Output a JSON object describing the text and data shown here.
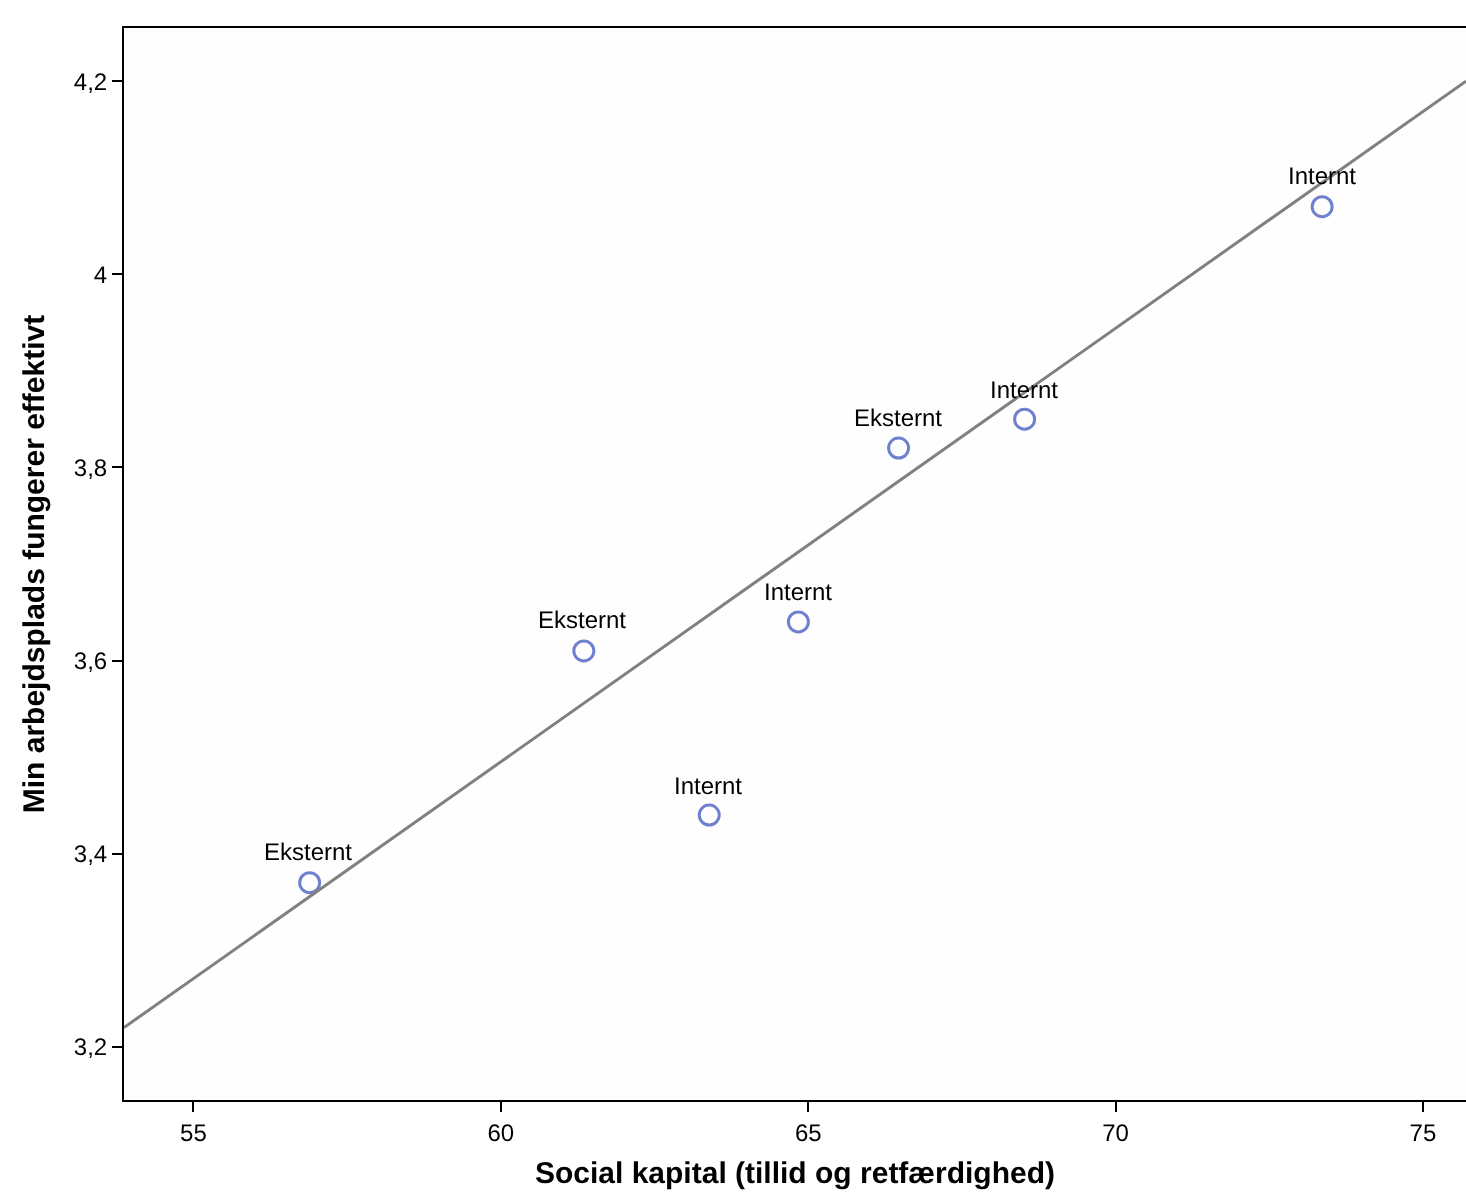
{
  "chart_data": {
    "type": "scatter",
    "xlabel": "Social kapital (tillid og retfærdighed)",
    "ylabel": "Min arbejdsplads fungerer effektivt",
    "x": [
      56.89,
      61.35,
      63.39,
      64.84,
      66.47,
      68.52,
      73.36
    ],
    "series": [
      {
        "type": "scatter",
        "color": "#6f80cc",
        "marker": "circle",
        "values": [
          3.37,
          3.61,
          3.44,
          3.64,
          3.82,
          3.85,
          4.07
        ]
      },
      {
        "type": "line",
        "color": "#808080",
        "x": [
          53.87,
          75.7
        ],
        "values": [
          3.22,
          4.2
        ]
      }
    ],
    "annotations": [
      {
        "text": "Eksternt",
        "x": 56.89,
        "y": 3.37
      },
      {
        "text": "Eksternt",
        "x": 61.35,
        "y": 3.61
      },
      {
        "text": "Internt",
        "x": 63.39,
        "y": 3.44
      },
      {
        "text": "Internt",
        "x": 64.84,
        "y": 3.64
      },
      {
        "text": "Eksternt",
        "x": 66.47,
        "y": 3.82
      },
      {
        "text": "Internt",
        "x": 68.52,
        "y": 3.85
      },
      {
        "text": "Internt",
        "x": 73.36,
        "y": 4.07
      }
    ],
    "xlim": [
      53.87,
      75.7
    ],
    "xticks": [
      55,
      60,
      65,
      70,
      75
    ],
    "ylim": [
      3.145,
      4.255
    ],
    "yticks": [
      {
        "value": 3.2,
        "label": "3,2"
      },
      {
        "value": 3.4,
        "label": "3,4"
      },
      {
        "value": 3.6,
        "label": "3,6"
      },
      {
        "value": 3.8,
        "label": "3,8"
      },
      4,
      {
        "value": 4.2,
        "label": "4,2"
      }
    ],
    "grid": false
  }
}
